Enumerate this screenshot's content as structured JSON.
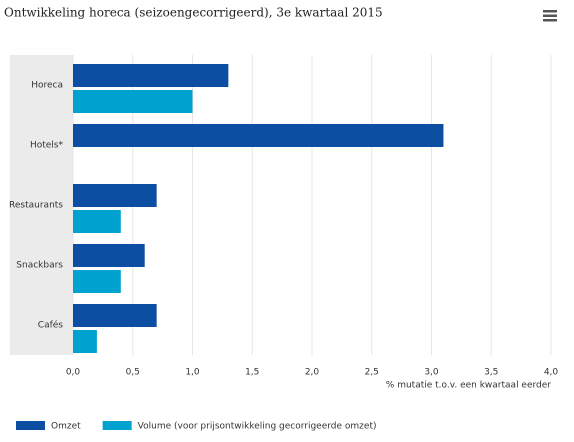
{
  "chart_data": {
    "type": "hbar",
    "title": "Ontwikkeling horeca (seizoengecorrigeerd), 3e kwartaal 2015",
    "x_label": "% mutatie t.o.v. een kwartaal eerder",
    "categories": [
      "Horeca",
      "Hotels*",
      "Restaurants",
      "Snackbars",
      "Cafés"
    ],
    "series": [
      {
        "name": "Omzet",
        "color": "#0b4ea2",
        "values": [
          1.3,
          3.1,
          0.7,
          0.6,
          0.7
        ]
      },
      {
        "name": "Volume (voor prijsontwikkeling gecorrigeerde omzet)",
        "color": "#00a3cf",
        "values": [
          1.0,
          null,
          0.4,
          0.4,
          0.2
        ]
      }
    ],
    "xlim": [
      0,
      4
    ],
    "xticks": [
      {
        "value": 0,
        "label": "0,0"
      },
      {
        "value": 0.5,
        "label": "0,5"
      },
      {
        "value": 1,
        "label": "1,0"
      },
      {
        "value": 1.5,
        "label": "1,5"
      },
      {
        "value": 2,
        "label": "2,0"
      },
      {
        "value": 2.5,
        "label": "2,5"
      },
      {
        "value": 3,
        "label": "3,0"
      },
      {
        "value": 3.5,
        "label": "3,5"
      },
      {
        "value": 4,
        "label": "4,0"
      }
    ],
    "grid": true,
    "legend": "bottom"
  }
}
